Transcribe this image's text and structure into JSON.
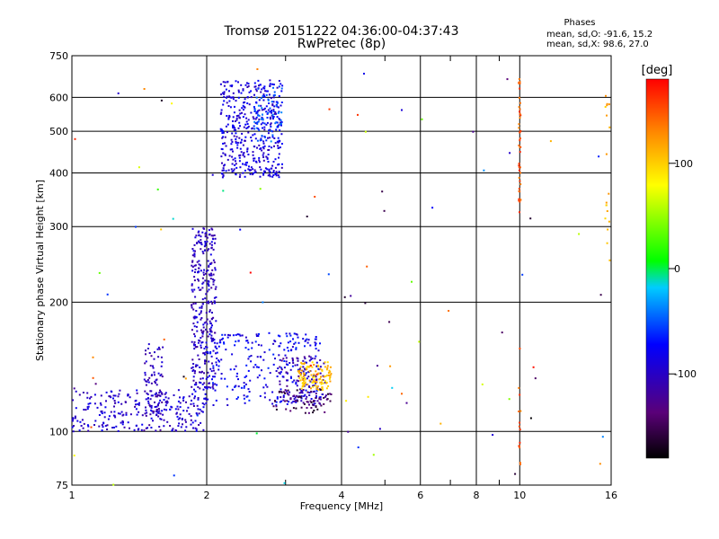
{
  "header": {
    "title_line1": "Tromsø 20151222 04:36:00-04:37:43",
    "title_line2": "RwPretec (8p)"
  },
  "phases": {
    "title": "Phases",
    "o_line": "mean, sd,O: -91.6, 15.2",
    "x_line": "mean, sd,X:  98.6, 27.0"
  },
  "colorbar": {
    "label": "[deg]",
    "ticks": [
      {
        "value": 100,
        "label": "100"
      },
      {
        "value": 0,
        "label": "0"
      },
      {
        "value": -100,
        "label": "-100"
      }
    ],
    "range": [
      -180,
      180
    ]
  },
  "chart_data": {
    "type": "scatter",
    "xlabel": "Frequency [MHz]",
    "ylabel": "Stationary phase Virtual Height [km]",
    "x_scale": "log",
    "y_scale": "log",
    "xlim": [
      1,
      16
    ],
    "ylim": [
      75,
      750
    ],
    "x_ticks": [
      1,
      2,
      4,
      6,
      8,
      10,
      16
    ],
    "x_ticklabels": [
      "1",
      "2",
      "4",
      "6",
      "8",
      "10",
      "16"
    ],
    "y_ticks": [
      75,
      100,
      200,
      300,
      400,
      500,
      600,
      750
    ],
    "y_ticklabels": [
      "75",
      "100",
      "200",
      "300",
      "400",
      "500",
      "600",
      "750"
    ],
    "grid": true,
    "clusters": [
      {
        "name": "low-F trace",
        "x_range": [
          1.0,
          2.0
        ],
        "y_range": [
          100,
          125
        ],
        "phase": -95,
        "count": 260
      },
      {
        "name": "bump",
        "x_range": [
          1.45,
          1.6
        ],
        "y_range": [
          100,
          160
        ],
        "phase": -105,
        "count": 90
      },
      {
        "name": "F vertical",
        "x_range": [
          1.85,
          2.1
        ],
        "y_range": [
          125,
          300
        ],
        "phase": -100,
        "count": 320
      },
      {
        "name": "ridge",
        "x_range": [
          2.0,
          3.6
        ],
        "y_range": [
          115,
          170
        ],
        "phase": -80,
        "count": 260
      },
      {
        "name": "mid right",
        "x_range": [
          2.9,
          3.7
        ],
        "y_range": [
          115,
          150
        ],
        "phase": -110,
        "count": 120
      },
      {
        "name": "yellow X",
        "x_range": [
          3.2,
          3.8
        ],
        "y_range": [
          125,
          145
        ],
        "phase": 105,
        "count": 110
      },
      {
        "name": "purple low",
        "x_range": [
          2.8,
          3.8
        ],
        "y_range": [
          110,
          125
        ],
        "phase": -150,
        "count": 60
      },
      {
        "name": "upper F",
        "x_range": [
          2.15,
          2.95
        ],
        "y_range": [
          390,
          660
        ],
        "phase": -90,
        "count": 420
      },
      {
        "name": "cyan upper",
        "x_range": [
          2.55,
          2.95
        ],
        "y_range": [
          470,
          650
        ],
        "phase": -55,
        "count": 80
      },
      {
        "name": "scatter",
        "x_range": [
          1.0,
          16
        ],
        "y_range": [
          75,
          700
        ],
        "phase": 0,
        "count": 90
      },
      {
        "name": "10 MHz line",
        "x_range": [
          9.95,
          10.05
        ],
        "y_range": [
          320,
          670
        ],
        "phase": 150,
        "count": 45
      },
      {
        "name": "10 MHz low",
        "x_range": [
          9.95,
          10.05
        ],
        "y_range": [
          80,
          170
        ],
        "phase": 150,
        "count": 14
      },
      {
        "name": "16 MHz col",
        "x_range": [
          15.5,
          15.9
        ],
        "y_range": [
          200,
          620
        ],
        "phase": 110,
        "count": 18
      }
    ]
  }
}
